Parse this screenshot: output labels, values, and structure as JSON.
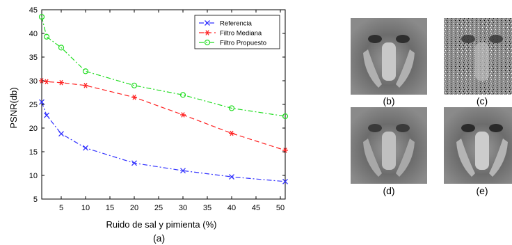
{
  "chart_data": {
    "type": "line",
    "xlabel": "Ruido de sal y pimienta (%)",
    "ylabel": "PSNR(db)",
    "xlim": [
      1,
      51
    ],
    "ylim": [
      5,
      45
    ],
    "xticks": [
      5,
      10,
      15,
      20,
      25,
      30,
      35,
      40,
      45,
      50
    ],
    "yticks": [
      5,
      10,
      15,
      20,
      25,
      30,
      35,
      40,
      45
    ],
    "legend_position": "top-right",
    "series": [
      {
        "name": "Referencia",
        "color": "#3333ff",
        "dash": "dashdot",
        "marker": "x",
        "x": [
          1,
          2,
          5,
          10,
          20,
          30,
          40,
          51
        ],
        "y": [
          25.5,
          22.7,
          18.8,
          15.8,
          12.6,
          11.0,
          9.7,
          8.7
        ]
      },
      {
        "name": "Filtro Mediana",
        "color": "#ff2222",
        "dash": "dashed",
        "marker": "asterisk",
        "x": [
          1,
          2,
          5,
          10,
          20,
          30,
          40,
          51
        ],
        "y": [
          30.0,
          29.8,
          29.6,
          29.0,
          26.5,
          22.8,
          18.9,
          15.3
        ]
      },
      {
        "name": "Filtro Propuesto",
        "color": "#22dd22",
        "dash": "dashdot",
        "marker": "circle",
        "x": [
          1,
          2,
          5,
          10,
          20,
          30,
          40,
          51
        ],
        "y": [
          43.5,
          39.3,
          37.0,
          32.0,
          29.0,
          27.0,
          24.2,
          22.5
        ]
      }
    ]
  },
  "captions": {
    "chart": "(a)",
    "b": "(b)",
    "c": "(c)",
    "d": "(d)",
    "e": "(e)"
  }
}
